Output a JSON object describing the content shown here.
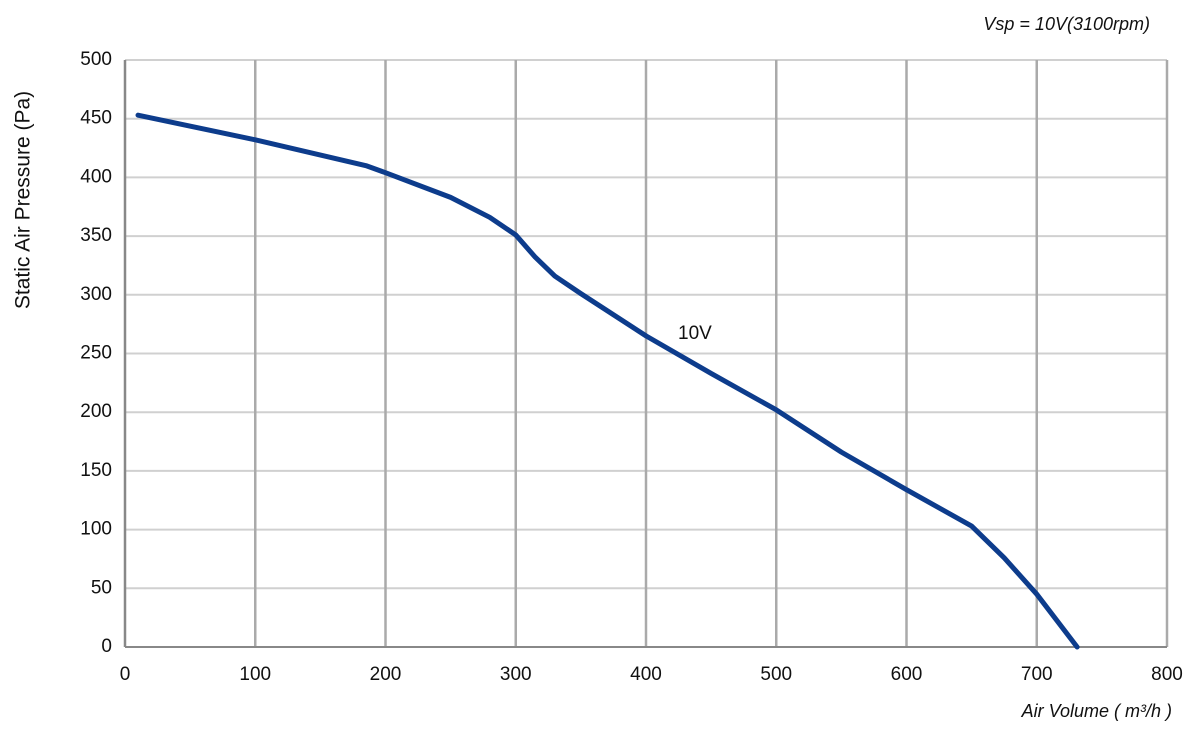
{
  "chart_data": {
    "type": "line",
    "title": "Vsp = 10V(3100rpm)",
    "x_label": "Air Volume ( m³/h )",
    "y_label": "Static Air Pressure  (Pa)",
    "x": [
      10,
      100,
      185,
      200,
      250,
      280,
      300,
      315,
      330,
      350,
      400,
      450,
      500,
      550,
      600,
      650,
      675,
      700,
      731
    ],
    "series": [
      {
        "name": "10V",
        "color": "#0d3c8c",
        "values": [
          453,
          432,
          410,
          404,
          383,
          366,
          351,
          332,
          316,
          301,
          265,
          233,
          202,
          166,
          134,
          103,
          76,
          45,
          0
        ]
      }
    ],
    "xlim": [
      0,
      800
    ],
    "xticks": [
      0,
      100,
      200,
      300,
      400,
      500,
      600,
      700,
      800
    ],
    "ylim": [
      0,
      500
    ],
    "yticks": [
      0,
      50,
      100,
      150,
      200,
      250,
      300,
      350,
      400,
      450,
      500
    ],
    "grid": true
  }
}
